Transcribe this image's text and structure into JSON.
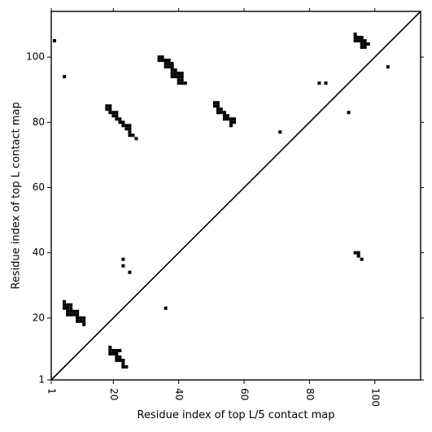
{
  "chart_data": {
    "type": "heatmap",
    "xlabel": "Residue index of top L/5 contact map",
    "ylabel": "Residue index of top L contact map",
    "xlim": [
      1,
      114
    ],
    "ylim": [
      1,
      114
    ],
    "x_ticks": [
      1,
      20,
      40,
      60,
      80,
      100
    ],
    "y_ticks": [
      1,
      20,
      40,
      60,
      80,
      100
    ],
    "x_tick_rotation": 90,
    "diagonal": true,
    "color": "#000000",
    "top_L_contacts_upper_left": [
      [
        2,
        105
      ],
      [
        5,
        94
      ],
      [
        18,
        85
      ],
      [
        19,
        85
      ],
      [
        18,
        84
      ],
      [
        19,
        84
      ],
      [
        19,
        83
      ],
      [
        20,
        83
      ],
      [
        21,
        83
      ],
      [
        20,
        82
      ],
      [
        21,
        82
      ],
      [
        21,
        81
      ],
      [
        22,
        81
      ],
      [
        22,
        80
      ],
      [
        23,
        80
      ],
      [
        23,
        79
      ],
      [
        24,
        79
      ],
      [
        25,
        79
      ],
      [
        24,
        78
      ],
      [
        25,
        78
      ],
      [
        25,
        77
      ],
      [
        25,
        76
      ],
      [
        26,
        76
      ],
      [
        27,
        75
      ],
      [
        34,
        100
      ],
      [
        35,
        100
      ],
      [
        34,
        99
      ],
      [
        35,
        99
      ],
      [
        36,
        99
      ],
      [
        37,
        99
      ],
      [
        36,
        98
      ],
      [
        37,
        98
      ],
      [
        38,
        98
      ],
      [
        36,
        97
      ],
      [
        37,
        97
      ],
      [
        38,
        97
      ],
      [
        38,
        96
      ],
      [
        39,
        96
      ],
      [
        38,
        95
      ],
      [
        39,
        95
      ],
      [
        40,
        95
      ],
      [
        41,
        95
      ],
      [
        38,
        94
      ],
      [
        39,
        94
      ],
      [
        40,
        94
      ],
      [
        41,
        94
      ],
      [
        40,
        93
      ],
      [
        41,
        93
      ],
      [
        40,
        92
      ],
      [
        41,
        92
      ],
      [
        42,
        92
      ],
      [
        51,
        86
      ],
      [
        52,
        86
      ],
      [
        51,
        85
      ],
      [
        52,
        85
      ],
      [
        52,
        84
      ],
      [
        53,
        84
      ],
      [
        52,
        83
      ],
      [
        53,
        83
      ],
      [
        54,
        83
      ],
      [
        54,
        82
      ],
      [
        55,
        82
      ],
      [
        54,
        81
      ],
      [
        55,
        81
      ],
      [
        56,
        81
      ],
      [
        57,
        81
      ],
      [
        56,
        80
      ],
      [
        57,
        80
      ],
      [
        56,
        79
      ],
      [
        71,
        77
      ],
      [
        83,
        92
      ],
      [
        85,
        92
      ],
      [
        92,
        83
      ],
      [
        94,
        107
      ],
      [
        94,
        106
      ],
      [
        95,
        106
      ],
      [
        96,
        106
      ],
      [
        94,
        105
      ],
      [
        95,
        105
      ],
      [
        96,
        105
      ],
      [
        97,
        105
      ],
      [
        96,
        104
      ],
      [
        97,
        104
      ],
      [
        98,
        104
      ],
      [
        96,
        103
      ],
      [
        97,
        103
      ],
      [
        104,
        97
      ]
    ],
    "top_L5_contacts_lower_right": [
      [
        5,
        25
      ],
      [
        5,
        24
      ],
      [
        6,
        24
      ],
      [
        7,
        24
      ],
      [
        5,
        23
      ],
      [
        6,
        23
      ],
      [
        7,
        23
      ],
      [
        6,
        22
      ],
      [
        7,
        22
      ],
      [
        8,
        22
      ],
      [
        9,
        22
      ],
      [
        6,
        21
      ],
      [
        7,
        21
      ],
      [
        8,
        21
      ],
      [
        9,
        21
      ],
      [
        9,
        20
      ],
      [
        10,
        20
      ],
      [
        11,
        20
      ],
      [
        9,
        19
      ],
      [
        10,
        19
      ],
      [
        11,
        19
      ],
      [
        11,
        18
      ],
      [
        19,
        11
      ],
      [
        19,
        10
      ],
      [
        20,
        10
      ],
      [
        21,
        10
      ],
      [
        22,
        10
      ],
      [
        19,
        9
      ],
      [
        20,
        9
      ],
      [
        21,
        9
      ],
      [
        21,
        8
      ],
      [
        22,
        8
      ],
      [
        21,
        7
      ],
      [
        22,
        7
      ],
      [
        23,
        7
      ],
      [
        23,
        6
      ],
      [
        23,
        5
      ],
      [
        24,
        5
      ],
      [
        23,
        38
      ],
      [
        23,
        36
      ],
      [
        25,
        34
      ],
      [
        36,
        23
      ],
      [
        94,
        40
      ],
      [
        95,
        40
      ],
      [
        95,
        39
      ],
      [
        96,
        38
      ]
    ]
  }
}
